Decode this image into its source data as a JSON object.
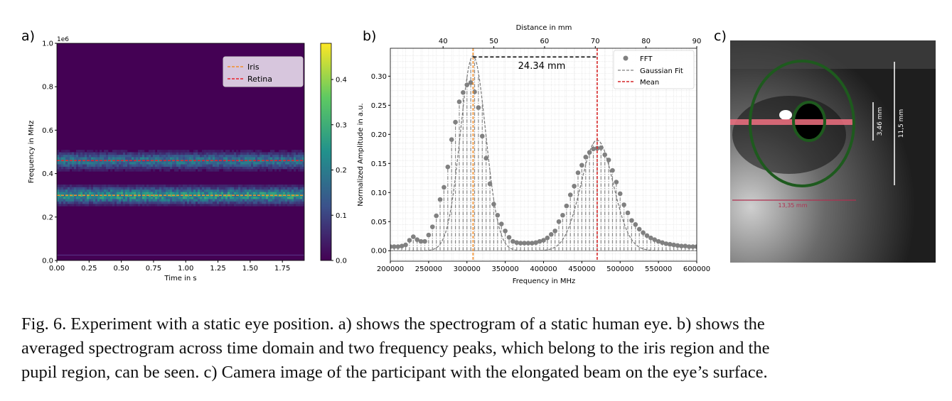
{
  "panel_labels": {
    "a": "a)",
    "b": "b)",
    "c": "c)"
  },
  "chart_data": [
    {
      "type": "heatmap",
      "panel": "a",
      "xlabel": "Time in s",
      "ylabel": "Frequency in MHz",
      "y_offset_label": "1e6",
      "xlim": [
        0,
        1.92
      ],
      "ylim": [
        0,
        1000000
      ],
      "xticks": [
        "0.00",
        "0.25",
        "0.50",
        "0.75",
        "1.00",
        "1.25",
        "1.50",
        "1.75"
      ],
      "yticks": [
        "0.0",
        "0.2",
        "0.4",
        "0.6",
        "0.8",
        "1.0"
      ],
      "colormap": "viridis",
      "colorbar": {
        "range": [
          0,
          0.48
        ],
        "ticks": [
          "0.0",
          "0.1",
          "0.2",
          "0.3",
          "0.4"
        ]
      },
      "bands_hz": [
        300000,
        460000
      ],
      "legend": {
        "placement": "upper-right",
        "entries": [
          {
            "name": "Iris",
            "color": "#f28e2b",
            "value": 300000
          },
          {
            "name": "Retina",
            "color": "#e8222d",
            "value": 460000
          }
        ]
      }
    },
    {
      "type": "scatter",
      "panel": "b",
      "xlabel": "Frequency in MHz",
      "ylabel": "Normalized Amplitude in a.u.",
      "top_xlabel": "Distance in mm",
      "xlim": [
        200000,
        600000
      ],
      "ylim": [
        -0.018,
        0.348
      ],
      "top_xlim": [
        29.6,
        90
      ],
      "xticks": [
        "200000",
        "250000",
        "300000",
        "350000",
        "400000",
        "450000",
        "500000",
        "550000",
        "600000"
      ],
      "yticks": [
        "0.00",
        "0.05",
        "0.10",
        "0.15",
        "0.20",
        "0.25",
        "0.30"
      ],
      "top_xticks": [
        "40",
        "50",
        "60",
        "70",
        "80",
        "90"
      ],
      "grid": true,
      "fft": {
        "x_start": 200000,
        "x_step": 5000,
        "values": [
          0.007,
          0.007,
          0.007,
          0.008,
          0.01,
          0.018,
          0.024,
          0.019,
          0.016,
          0.016,
          0.027,
          0.041,
          0.06,
          0.088,
          0.109,
          0.144,
          0.191,
          0.221,
          0.256,
          0.272,
          0.285,
          0.289,
          0.273,
          0.246,
          0.197,
          0.159,
          0.115,
          0.08,
          0.061,
          0.046,
          0.034,
          0.023,
          0.016,
          0.014,
          0.013,
          0.013,
          0.013,
          0.013,
          0.014,
          0.016,
          0.018,
          0.022,
          0.028,
          0.034,
          0.05,
          0.061,
          0.077,
          0.096,
          0.111,
          0.134,
          0.147,
          0.161,
          0.169,
          0.175,
          0.176,
          0.177,
          0.165,
          0.156,
          0.138,
          0.118,
          0.098,
          0.079,
          0.065,
          0.052,
          0.045,
          0.037,
          0.031,
          0.026,
          0.022,
          0.019,
          0.016,
          0.014,
          0.012,
          0.011,
          0.01,
          0.009,
          0.008,
          0.008,
          0.007,
          0.007,
          0.007
        ]
      },
      "gaussian_fits": [
        {
          "mean": 308000,
          "amplitude": 0.335,
          "sigma": 16500
        },
        {
          "mean": 470000,
          "amplitude": 0.19,
          "sigma": 21000
        }
      ],
      "means": [
        {
          "value": 308000,
          "color": "#f28e2b"
        },
        {
          "value": 470000,
          "color": "#d62728"
        }
      ],
      "annotation": {
        "text": "24.34 mm",
        "y": 0.333,
        "x_from": 308000,
        "x_to": 470000
      },
      "legend": {
        "placement": "upper-right",
        "entries": [
          {
            "name": "FFT",
            "color": "#808080"
          },
          {
            "name": "Gaussian Fit",
            "color": "#808080"
          },
          {
            "name": "Mean",
            "color": "#d62728"
          }
        ]
      }
    }
  ],
  "photo": {
    "labels": {
      "pupil": "3,46 mm",
      "iris": "11,5 mm",
      "beam": "13,35 mm"
    },
    "colors": {
      "ellipse": "#1e5a1e",
      "beam": "#f07080",
      "measure": "#b03050"
    }
  },
  "caption": {
    "lines": [
      "Fig. 6.  Experiment with a static eye position. a) shows the spectrogram of a static human eye. b) shows the",
      "averaged spectrogram across time domain and two frequency peaks, which belong to the iris region and the",
      "pupil region, can be seen. c) Camera image of the participant with the elongated beam on the eye’s surface."
    ]
  }
}
